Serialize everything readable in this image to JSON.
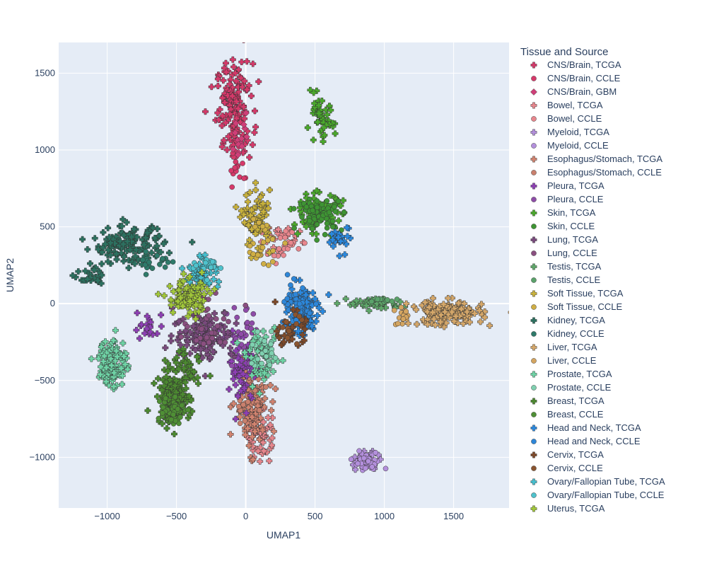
{
  "chart_data": {
    "type": "scatter",
    "xlabel": "UMAP1",
    "ylabel": "UMAP2",
    "xlim": [
      -1350,
      1900
    ],
    "ylim": [
      -1330,
      1700
    ],
    "x_ticks": [
      -1000,
      -500,
      0,
      500,
      1000,
      1500
    ],
    "y_ticks": [
      -1000,
      -500,
      0,
      500,
      1000,
      1500
    ],
    "x_tick_labels": [
      "−1000",
      "−500",
      "0",
      "500",
      "1000",
      "1500"
    ],
    "y_tick_labels": [
      "−1000",
      "−500",
      "0",
      "500",
      "1000",
      "1500"
    ],
    "grid": true,
    "legend": {
      "title": "Tissue and Source",
      "placement": "right"
    },
    "series": [
      {
        "name": "CNS/Brain, TCGA",
        "color": "#d6396a",
        "marker": "cross",
        "clusters": [
          {
            "cx": -80,
            "cy": 1270,
            "sx": 65,
            "sy": 150,
            "n": 150
          }
        ]
      },
      {
        "name": "CNS/Brain, CCLE",
        "color": "#d6396a",
        "marker": "circle",
        "clusters": [
          {
            "cx": -60,
            "cy": 900,
            "sx": 40,
            "sy": 70,
            "n": 18
          }
        ]
      },
      {
        "name": "CNS/Brain, GBM",
        "color": "#cf3f78",
        "marker": "diamond",
        "clusters": [
          {
            "cx": -40,
            "cy": 1080,
            "sx": 30,
            "sy": 80,
            "n": 14
          }
        ]
      },
      {
        "name": "Bowel, TCGA",
        "color": "#e8868d",
        "marker": "cross",
        "clusters": [
          {
            "cx": 100,
            "cy": -850,
            "sx": 45,
            "sy": 90,
            "n": 55
          },
          {
            "cx": 250,
            "cy": 420,
            "sx": 70,
            "sy": 50,
            "n": 25
          }
        ]
      },
      {
        "name": "Bowel, CCLE",
        "color": "#e8868d",
        "marker": "circle",
        "clusters": [
          {
            "cx": 280,
            "cy": 380,
            "sx": 60,
            "sy": 50,
            "n": 25
          }
        ]
      },
      {
        "name": "Myeloid, TCGA",
        "color": "#b38fdc",
        "marker": "cross",
        "clusters": [
          {
            "cx": 860,
            "cy": -1020,
            "sx": 50,
            "sy": 30,
            "n": 35
          }
        ]
      },
      {
        "name": "Myeloid, CCLE",
        "color": "#b38fdc",
        "marker": "circle",
        "clusters": [
          {
            "cx": 880,
            "cy": -1040,
            "sx": 50,
            "sy": 30,
            "n": 35
          }
        ]
      },
      {
        "name": "Esophagus/Stomach, TCGA",
        "color": "#d38470",
        "marker": "cross",
        "clusters": [
          {
            "cx": 40,
            "cy": -680,
            "sx": 60,
            "sy": 130,
            "n": 110
          }
        ]
      },
      {
        "name": "Esophagus/Stomach, CCLE",
        "color": "#c9806d",
        "marker": "circle",
        "clusters": [
          {
            "cx": 20,
            "cy": -560,
            "sx": 50,
            "sy": 90,
            "n": 35
          }
        ]
      },
      {
        "name": "Pleura, TCGA",
        "color": "#8e3fb5",
        "marker": "cross",
        "clusters": [
          {
            "cx": -20,
            "cy": -420,
            "sx": 45,
            "sy": 110,
            "n": 70
          },
          {
            "cx": -700,
            "cy": -150,
            "sx": 60,
            "sy": 60,
            "n": 20
          }
        ]
      },
      {
        "name": "Pleura, CCLE",
        "color": "#8e4ca8",
        "marker": "circle",
        "clusters": [
          {
            "cx": -30,
            "cy": -200,
            "sx": 70,
            "sy": 80,
            "n": 30
          }
        ]
      },
      {
        "name": "Skin, TCGA",
        "color": "#4aa92b",
        "marker": "cross",
        "clusters": [
          {
            "cx": 540,
            "cy": 1190,
            "sx": 50,
            "sy": 70,
            "n": 50
          },
          {
            "cx": 520,
            "cy": 600,
            "sx": 90,
            "sy": 60,
            "n": 80
          }
        ]
      },
      {
        "name": "Skin, CCLE",
        "color": "#3e9433",
        "marker": "circle",
        "clusters": [
          {
            "cx": 540,
            "cy": 580,
            "sx": 80,
            "sy": 50,
            "n": 80
          }
        ]
      },
      {
        "name": "Lung, TCGA",
        "color": "#7a4a7e",
        "marker": "cross",
        "clusters": [
          {
            "cx": -300,
            "cy": -200,
            "sx": 110,
            "sy": 80,
            "n": 130
          }
        ]
      },
      {
        "name": "Lung, CCLE",
        "color": "#8a4f80",
        "marker": "circle",
        "clusters": [
          {
            "cx": -250,
            "cy": -150,
            "sx": 100,
            "sy": 80,
            "n": 35
          }
        ]
      },
      {
        "name": "Testis, TCGA",
        "color": "#5fa86a",
        "marker": "cross",
        "clusters": [
          {
            "cx": 930,
            "cy": 0,
            "sx": 100,
            "sy": 20,
            "n": 45
          }
        ]
      },
      {
        "name": "Testis, CCLE",
        "color": "#5aa26a",
        "marker": "circle",
        "clusters": [
          {
            "cx": 1000,
            "cy": 20,
            "sx": 60,
            "sy": 15,
            "n": 10
          }
        ]
      },
      {
        "name": "Soft Tissue, TCGA",
        "color": "#c9b23c",
        "marker": "cross",
        "clusters": [
          {
            "cx": 80,
            "cy": 550,
            "sx": 50,
            "sy": 90,
            "n": 70
          }
        ]
      },
      {
        "name": "Soft Tissue, CCLE",
        "color": "#cfae45",
        "marker": "circle",
        "clusters": [
          {
            "cx": 120,
            "cy": 400,
            "sx": 60,
            "sy": 80,
            "n": 30
          }
        ]
      },
      {
        "name": "Kidney, TCGA",
        "color": "#2c7160",
        "marker": "cross",
        "clusters": [
          {
            "cx": -850,
            "cy": 380,
            "sx": 130,
            "sy": 60,
            "n": 150
          },
          {
            "cx": -1100,
            "cy": 160,
            "sx": 50,
            "sy": 30,
            "n": 30
          }
        ]
      },
      {
        "name": "Kidney, CCLE",
        "color": "#2e7a6a",
        "marker": "circle",
        "clusters": [
          {
            "cx": -650,
            "cy": 270,
            "sx": 80,
            "sy": 40,
            "n": 20
          }
        ]
      },
      {
        "name": "Liver, TCGA",
        "color": "#d6a86a",
        "marker": "cross",
        "clusters": [
          {
            "cx": 1450,
            "cy": -60,
            "sx": 130,
            "sy": 40,
            "n": 140
          }
        ]
      },
      {
        "name": "Liver, CCLE",
        "color": "#d4a560",
        "marker": "circle",
        "clusters": [
          {
            "cx": 1150,
            "cy": -90,
            "sx": 60,
            "sy": 30,
            "n": 15
          }
        ]
      },
      {
        "name": "Prostate, TCGA",
        "color": "#6fd4a6",
        "marker": "cross",
        "clusters": [
          {
            "cx": -960,
            "cy": -380,
            "sx": 50,
            "sy": 80,
            "n": 120
          },
          {
            "cx": 120,
            "cy": -350,
            "sx": 60,
            "sy": 80,
            "n": 70
          }
        ]
      },
      {
        "name": "Prostate, CCLE",
        "color": "#7fd0b0",
        "marker": "circle",
        "clusters": [
          {
            "cx": 140,
            "cy": -330,
            "sx": 50,
            "sy": 60,
            "n": 25
          }
        ]
      },
      {
        "name": "Breast, TCGA",
        "color": "#4c8a30",
        "marker": "cross",
        "clusters": [
          {
            "cx": -520,
            "cy": -620,
            "sx": 60,
            "sy": 80,
            "n": 160
          },
          {
            "cx": -420,
            "cy": -400,
            "sx": 60,
            "sy": 60,
            "n": 40
          }
        ]
      },
      {
        "name": "Breast, CCLE",
        "color": "#4f8f35",
        "marker": "circle",
        "clusters": [
          {
            "cx": -540,
            "cy": -680,
            "sx": 50,
            "sy": 50,
            "n": 50
          }
        ]
      },
      {
        "name": "Head and Neck, TCGA",
        "color": "#2a89e0",
        "marker": "cross",
        "clusters": [
          {
            "cx": 400,
            "cy": -50,
            "sx": 60,
            "sy": 90,
            "n": 120
          },
          {
            "cx": 690,
            "cy": 420,
            "sx": 40,
            "sy": 40,
            "n": 30
          }
        ]
      },
      {
        "name": "Head and Neck, CCLE",
        "color": "#2d86d8",
        "marker": "circle",
        "clusters": [
          {
            "cx": 380,
            "cy": -20,
            "sx": 50,
            "sy": 70,
            "n": 35
          }
        ]
      },
      {
        "name": "Cervix, TCGA",
        "color": "#7e4a2a",
        "marker": "cross",
        "clusters": [
          {
            "cx": 330,
            "cy": -180,
            "sx": 50,
            "sy": 60,
            "n": 35
          }
        ]
      },
      {
        "name": "Cervix, CCLE",
        "color": "#8a5530",
        "marker": "circle",
        "clusters": [
          {
            "cx": 310,
            "cy": -150,
            "sx": 40,
            "sy": 40,
            "n": 10
          }
        ]
      },
      {
        "name": "Ovary/Fallopian Tube, TCGA",
        "color": "#45c0d0",
        "marker": "cross",
        "clusters": [
          {
            "cx": -320,
            "cy": 200,
            "sx": 60,
            "sy": 50,
            "n": 60
          }
        ]
      },
      {
        "name": "Ovary/Fallopian Tube, CCLE",
        "color": "#4fc2cc",
        "marker": "circle",
        "clusters": [
          {
            "cx": -260,
            "cy": 250,
            "sx": 50,
            "sy": 40,
            "n": 18
          }
        ]
      },
      {
        "name": "Uterus, TCGA",
        "color": "#a2c83a",
        "marker": "cross",
        "clusters": [
          {
            "cx": -420,
            "cy": 40,
            "sx": 70,
            "sy": 60,
            "n": 110
          }
        ]
      }
    ]
  }
}
